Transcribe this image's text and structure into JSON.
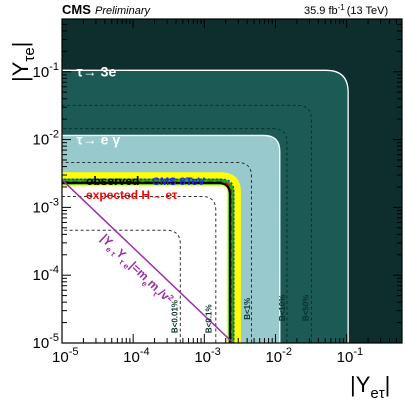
{
  "header": {
    "experiment": "CMS",
    "status": "Preliminary",
    "lumi": "35.9 fb",
    "lumi_sup": "-1",
    "energy": "(13 TeV)"
  },
  "chart_data": {
    "type": "area",
    "x_scale": "log",
    "y_scale": "log",
    "xlim": [
      1e-05,
      0.6
    ],
    "ylim": [
      1e-05,
      0.6
    ],
    "xlabel": "|Y",
    "xlabel_sub": "eτ",
    "xlabel_close": "|",
    "ylabel": "|Y",
    "ylabel_sub": "τe",
    "ylabel_close": "|",
    "x_ticks": [
      {
        "value": 1e-05,
        "base": "10",
        "exp": "-5"
      },
      {
        "value": 0.0001,
        "base": "10",
        "exp": "-4"
      },
      {
        "value": 0.001,
        "base": "10",
        "exp": "-3"
      },
      {
        "value": 0.01,
        "base": "10",
        "exp": "-2"
      },
      {
        "value": 0.1,
        "base": "10",
        "exp": "-1"
      }
    ],
    "y_ticks": [
      {
        "value": 1e-05,
        "base": "10",
        "exp": "-5"
      },
      {
        "value": 0.0001,
        "base": "10",
        "exp": "-4"
      },
      {
        "value": 0.001,
        "base": "10",
        "exp": "-3"
      },
      {
        "value": 0.01,
        "base": "10",
        "exp": "-2"
      },
      {
        "value": 0.1,
        "base": "10",
        "exp": "-1"
      }
    ],
    "regions": [
      {
        "name": "τ→ 3e",
        "label": "τ→ 3e",
        "boundary": 0.105,
        "color": "#1c5a56",
        "label_at": [
          1.6e-05,
          0.085
        ]
      },
      {
        "name": "τ→ e γ",
        "label": "τ→ e γ",
        "boundary": 0.0115,
        "color": "#98c9cc",
        "label_at": [
          1.6e-05,
          0.0085
        ]
      }
    ],
    "curves": [
      {
        "name": "expected H→ eτ ±2σ",
        "boundary": 0.0026,
        "color": "#ffff00",
        "width": 14
      },
      {
        "name": "expected H→ eτ ±1σ",
        "boundary": 0.0024,
        "color": "#22aa22",
        "width": 6
      },
      {
        "name": "expected H→ eτ",
        "boundary": 0.0024,
        "color": "#ff0000",
        "width": 1.5,
        "dash": "6,3"
      },
      {
        "name": "observed",
        "boundary": 0.0023,
        "color": "#000000",
        "width": 2
      },
      {
        "name": "CMS 8TeV",
        "boundary": 0.0026,
        "color": "#2222ff",
        "width": 1.2,
        "dash": "2,2"
      }
    ],
    "br_contours": [
      {
        "label": "B<50%",
        "boundary": 0.032,
        "label_at": [
          0.032,
          2.1e-05
        ]
      },
      {
        "label": "B<10%",
        "boundary": 0.0145,
        "label_at": [
          0.015,
          2.1e-05
        ]
      },
      {
        "label": "B<1%",
        "boundary": 0.0046,
        "label_at": [
          0.0048,
          2.2e-05
        ]
      },
      {
        "label": "B<0.1%",
        "boundary": 0.00145,
        "label_at": [
          0.0014,
          1.4e-05
        ]
      },
      {
        "label": "B<0.01%",
        "boundary": 0.00046,
        "label_at": [
          0.00046,
          1.4e-05
        ]
      }
    ],
    "legend": [
      {
        "label": "observed",
        "color": "#000000"
      },
      {
        "label": "CMS 8TeV",
        "color": "#2222ff"
      },
      {
        "label": "expected H→ eτ",
        "color": "#ff0000"
      }
    ],
    "naturalness_line": {
      "label": "|Y",
      "label_sub1": "e τ",
      "label_mid": "Y",
      "label_sub2": "τ e",
      "label_end": "|=m",
      "label_sub3": "e",
      "label_m": "m",
      "label_sub4": "τ",
      "label_v": "/v",
      "label_exp": "2",
      "color": "#9b2fa8",
      "x": [
        1e-05,
        0.00255
      ],
      "y": [
        0.00255,
        1e-05
      ]
    }
  }
}
